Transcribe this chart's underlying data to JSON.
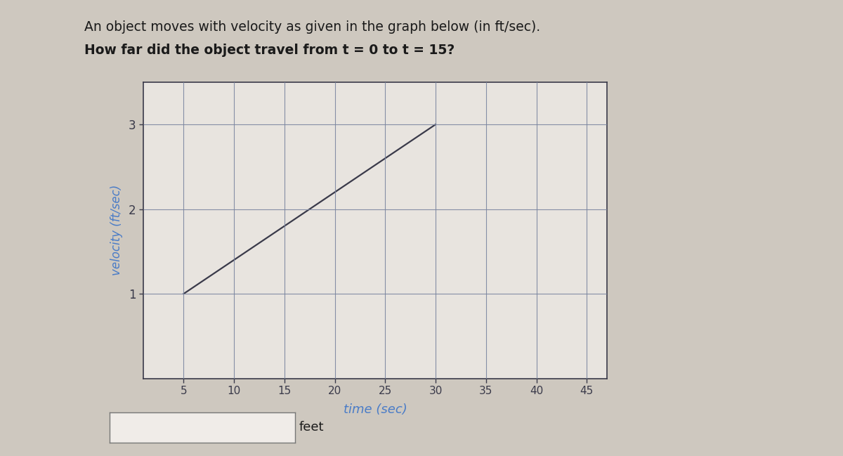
{
  "title_line1": "An object moves with velocity as given in the graph below (in ft/sec).",
  "title_line2": "How far did the object travel from t = 0 to t = 15?",
  "xlabel": "time (sec)",
  "ylabel": "velocity (ft/sec)",
  "line_x": [
    5,
    30
  ],
  "line_y": [
    1,
    3
  ],
  "line_color": "#3a3a4a",
  "line_width": 1.6,
  "xlim": [
    1,
    47
  ],
  "ylim": [
    0,
    3.5
  ],
  "xticks": [
    5,
    10,
    15,
    20,
    25,
    30,
    35,
    40,
    45
  ],
  "yticks": [
    1,
    2,
    3
  ],
  "grid_color": "#7a85a0",
  "grid_linewidth": 0.8,
  "axis_color": "#3a3a4a",
  "label_color": "#4a7cc7",
  "title_color": "#1a1a1a",
  "figure_bg_color": "#cec8bf",
  "plot_bg_color": "#e8e4df",
  "feet_label": "feet",
  "answer_box_color": "#f0ece8"
}
